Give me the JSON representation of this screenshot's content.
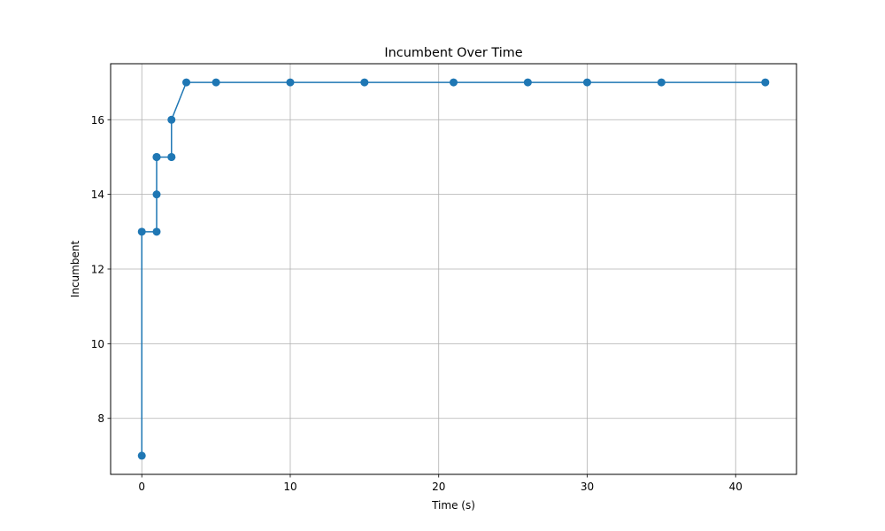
{
  "chart_data": {
    "type": "line",
    "title": "Incumbent Over Time",
    "xlabel": "Time (s)",
    "ylabel": "Incumbent",
    "xlim": [
      -2.1,
      44.1
    ],
    "ylim": [
      6.5,
      17.5
    ],
    "x_ticks": [
      0,
      10,
      20,
      30,
      40
    ],
    "y_ticks": [
      8,
      10,
      12,
      14,
      16
    ],
    "grid": true,
    "legend": "none",
    "series": [
      {
        "color": "#1f77b4",
        "marker": "circle",
        "x": [
          0,
          0,
          1,
          1,
          1,
          1,
          1,
          2,
          2,
          2,
          3,
          5,
          10,
          15,
          21,
          26,
          30,
          35,
          42
        ],
        "y": [
          7,
          13,
          13,
          14,
          15,
          15,
          15,
          15,
          15,
          16,
          17,
          17,
          17,
          17,
          17,
          17,
          17,
          17,
          17
        ]
      }
    ]
  }
}
